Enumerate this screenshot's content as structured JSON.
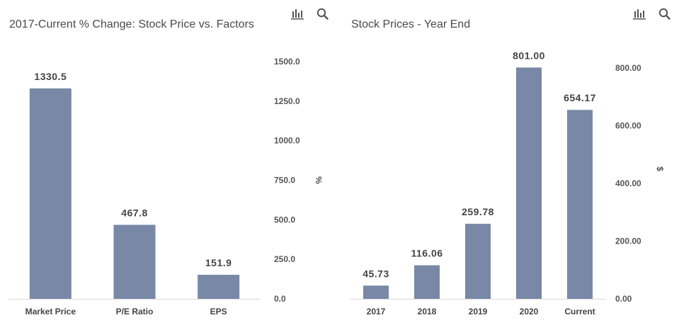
{
  "icons": {
    "chart_type": "bar-chart-icon",
    "zoom": "search-icon"
  },
  "colors": {
    "bar": "#7888a6",
    "title": "#4a4a4a"
  },
  "chart_data": [
    {
      "type": "bar",
      "title": "2017-Current % Change: Stock Price vs. Factors",
      "categories": [
        "Market Price",
        "P/E Ratio",
        "EPS"
      ],
      "values": [
        1330.5,
        467.8,
        151.9
      ],
      "value_labels": [
        "1330.5",
        "467.8",
        "151.9"
      ],
      "ylabel": "%",
      "ylim": [
        0,
        1500
      ],
      "yticks": [
        0,
        250,
        500,
        750,
        1000,
        1250,
        1500
      ],
      "ytick_labels": [
        "0.0",
        "250.0",
        "500.0",
        "750.0",
        "1000.0",
        "1250.0",
        "1500.0"
      ],
      "grid": false,
      "yaxis_side": "right"
    },
    {
      "type": "bar",
      "title": "Stock Prices - Year End",
      "categories": [
        "2017",
        "2018",
        "2019",
        "2020",
        "Current"
      ],
      "values": [
        45.73,
        116.06,
        259.78,
        801.0,
        654.17
      ],
      "value_labels": [
        "45.73",
        "116.06",
        "259.78",
        "801.00",
        "654.17"
      ],
      "ylabel": "$",
      "ylim": [
        0,
        900
      ],
      "yticks": [
        0,
        200,
        400,
        600,
        800
      ],
      "ytick_labels": [
        "0.00",
        "200.00",
        "400.00",
        "600.00",
        "800.00"
      ],
      "grid": false,
      "yaxis_side": "right"
    }
  ]
}
